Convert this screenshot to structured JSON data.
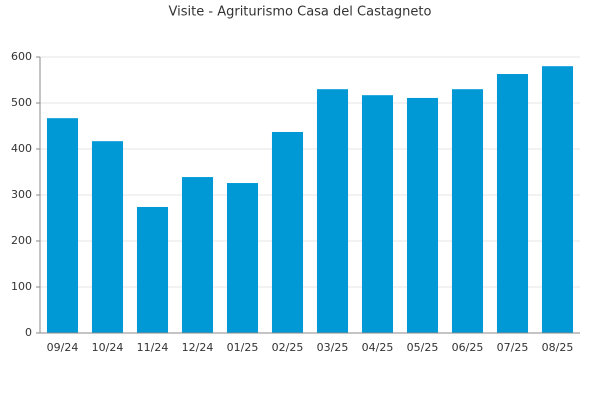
{
  "chart_data": {
    "type": "bar",
    "title": "Visite - Agriturismo Casa del Castagneto",
    "categories": [
      "09/24",
      "10/24",
      "11/24",
      "12/24",
      "01/25",
      "02/25",
      "03/25",
      "04/25",
      "05/25",
      "06/25",
      "07/25",
      "08/25"
    ],
    "values": [
      467,
      417,
      274,
      339,
      326,
      437,
      530,
      517,
      511,
      530,
      563,
      580
    ],
    "color": "#0099d6",
    "ylim": [
      0,
      600
    ],
    "yticks": [
      0,
      100,
      200,
      300,
      400,
      500,
      600
    ],
    "grid": true
  }
}
